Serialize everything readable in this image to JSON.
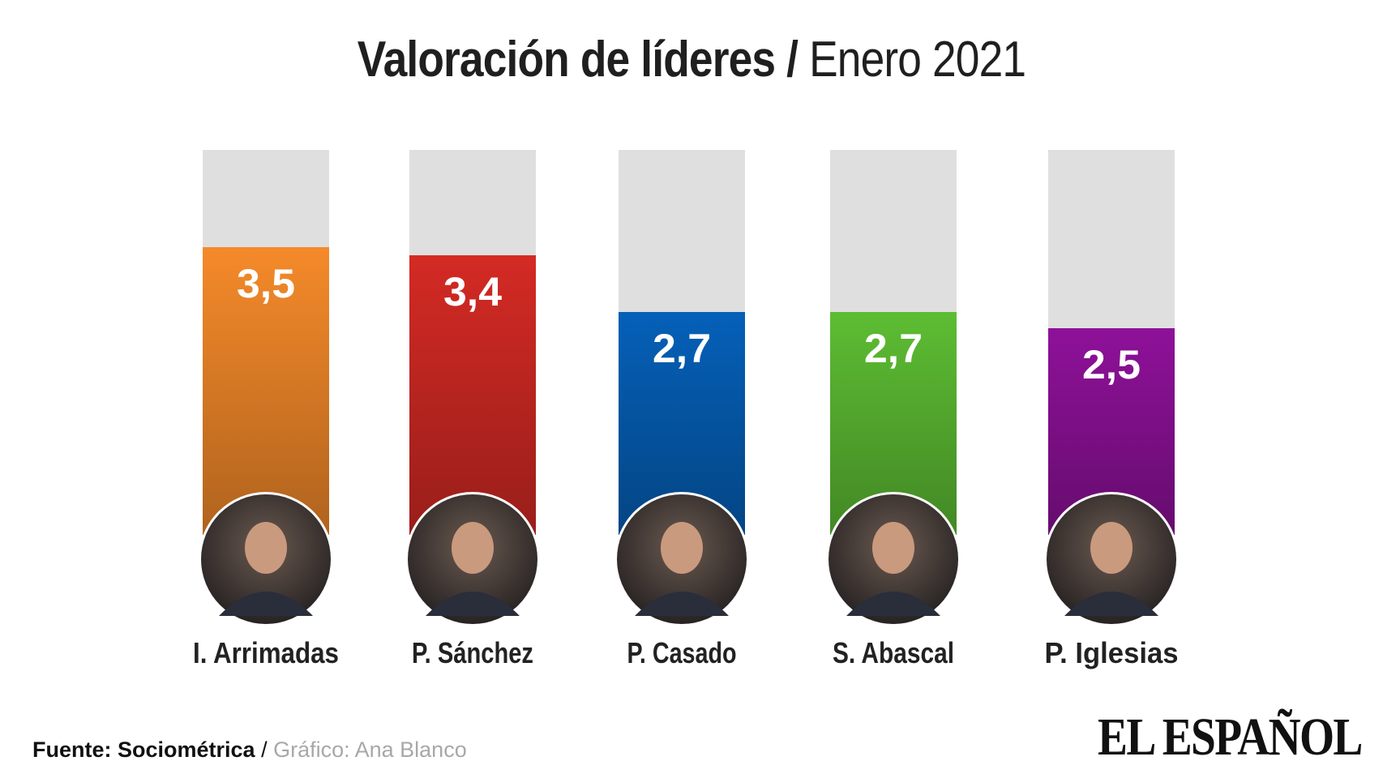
{
  "header": {
    "title_bold": "Valoración de líderes",
    "separator": "/",
    "title_light": "Enero 2021"
  },
  "chart_data": {
    "type": "bar",
    "title": "Valoración de líderes / Enero 2021",
    "categories": [
      "I. Arrimadas",
      "P. Sánchez",
      "P. Casado",
      "S. Abascal",
      "P. Iglesias"
    ],
    "values": [
      3.5,
      3.4,
      2.7,
      2.7,
      2.5
    ],
    "value_labels": [
      "3,5",
      "3,4",
      "2,7",
      "2,7",
      "2,5"
    ],
    "colors": [
      "#f58a2a",
      "#d42a24",
      "#0560b8",
      "#5dbd33",
      "#8e1199"
    ],
    "track_color": "#dfdfdf",
    "photo_icons": [
      "person-photo-arrimadas",
      "person-photo-sanchez",
      "person-photo-casado",
      "person-photo-abascal",
      "person-photo-iglesias"
    ],
    "xlabel": "",
    "ylabel": "",
    "grid": false,
    "legend": "none"
  },
  "footer": {
    "source": "Fuente: Sociométrica",
    "separator": " / ",
    "credit": "Gráfico: Ana Blanco"
  },
  "logo": {
    "text": "EL ESPAÑOL"
  }
}
